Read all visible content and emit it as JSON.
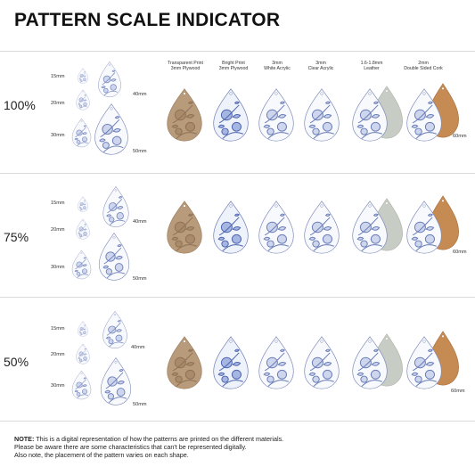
{
  "title": "PATTERN SCALE INDICATOR",
  "materials": [
    {
      "line1": "Transparent Print",
      "line2": "3mm Plywood"
    },
    {
      "line1": "Bright Print",
      "line2": "3mm Plywood"
    },
    {
      "line1": "3mm",
      "line2": "White Acrylic"
    },
    {
      "line1": "3mm",
      "line2": "Clear Acrylic"
    },
    {
      "line1": "1.6-1.8mm",
      "line2": "Leather"
    },
    {
      "line1": "2mm",
      "line2": "Double Sided Cork"
    }
  ],
  "rows": [
    {
      "scale": "100%",
      "sizes": [
        "15mm",
        "20mm",
        "30mm",
        "40mm",
        "50mm"
      ],
      "material_size": "60mm"
    },
    {
      "scale": "75%",
      "sizes": [
        "15mm",
        "20mm",
        "30mm",
        "40mm",
        "50mm"
      ],
      "material_size": "60mm"
    },
    {
      "scale": "50%",
      "sizes": [
        "15mm",
        "20mm",
        "30mm",
        "40mm",
        "50mm"
      ],
      "material_size": "60mm"
    }
  ],
  "note": {
    "label": "NOTE:",
    "line1": " This is a digital representation of how the patterns are printed on the different materials.",
    "line2": "Please be aware there are some characteristics that can't be represented digitally.",
    "line3": "Also note, the placement of the pattern varies on each shape."
  },
  "colors": {
    "pattern_blue": "#5b6fb0",
    "pattern_light": "#c9d2ec",
    "plywood": "#b89b7a",
    "plywood_dark": "#8a6e52",
    "leather_grey": "#c7ccc4",
    "cork": "#c68b52"
  }
}
